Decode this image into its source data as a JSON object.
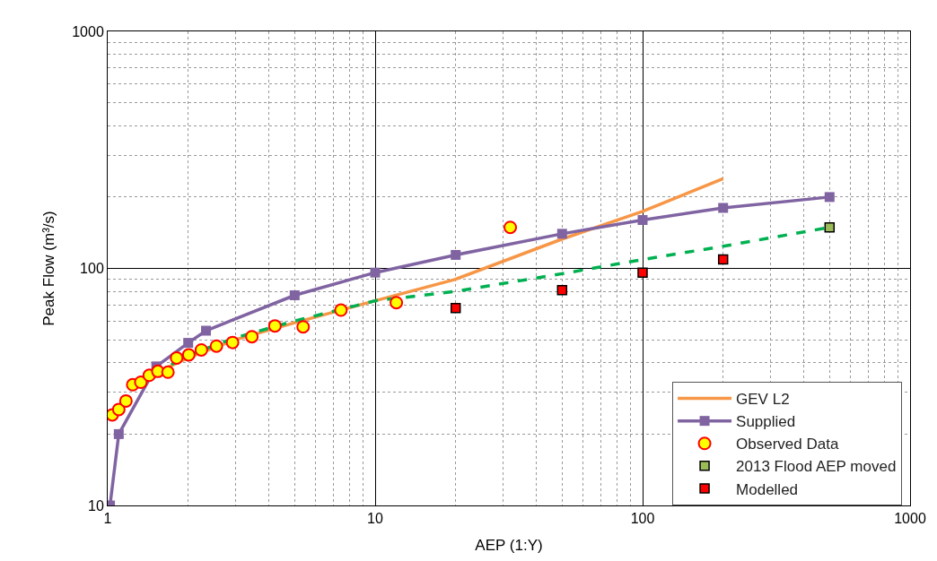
{
  "chart_data": {
    "type": "line",
    "xlabel": "AEP (1:Y)",
    "ylabel": "Peak Flow (m³/s)",
    "log": "xy",
    "xlim": [
      1,
      1000
    ],
    "ylim": [
      10,
      1000
    ],
    "xticks": [
      1,
      10,
      100,
      1000
    ],
    "yticks": [
      10,
      100,
      1000
    ],
    "grid": true,
    "legend": "bottom right",
    "series": [
      {
        "name": "GEV L2",
        "color": "#f79646",
        "marker": "none",
        "line_style": "solid",
        "x": [
          1.5,
          2,
          3,
          5,
          10,
          20,
          50,
          100,
          200
        ],
        "values": [
          36,
          42,
          50,
          59,
          73,
          90,
          133,
          174,
          239
        ]
      },
      {
        "name": "Observed Data",
        "type": "scatter",
        "color": "#ffff00",
        "marker": "circle",
        "x": [
          1.04,
          1.1,
          1.17,
          1.24,
          1.33,
          1.43,
          1.54,
          1.68,
          1.81,
          2.01,
          2.24,
          2.55,
          2.93,
          3.46,
          4.22,
          5.38,
          7.45,
          12,
          32
        ],
        "values": [
          24.1,
          25.4,
          27.6,
          32.3,
          33.1,
          35.4,
          36.8,
          36.5,
          41.9,
          43.2,
          45.3,
          47,
          48.7,
          51.5,
          57.2,
          56.7,
          66.7,
          71.7,
          149
        ]
      },
      {
        "name": "Supplied",
        "color": "#8064a2",
        "marker": "square",
        "line_style": "solid",
        "x": [
          1.02,
          1.1,
          1.52,
          2,
          2.33,
          5,
          10,
          20,
          50,
          100,
          200,
          500
        ],
        "values": [
          10,
          20,
          38.6,
          48.5,
          54.6,
          77,
          96,
          114,
          140,
          160,
          180,
          200
        ]
      },
      {
        "color": "#00b050",
        "marker": "none",
        "line_style": "dashed",
        "x": [
          1.5,
          2,
          3,
          5,
          10,
          20,
          50,
          100,
          200,
          500
        ],
        "values": [
          36,
          43,
          51,
          60,
          73,
          80,
          95,
          109,
          124,
          149
        ]
      },
      {
        "name": "2013 Flood AEP moved",
        "type": "scatter",
        "color": "#9bbb59",
        "marker": "square",
        "x": [
          500
        ],
        "values": [
          149
        ]
      },
      {
        "name": "Modelled",
        "type": "scatter",
        "color": "#ff0000",
        "marker": "square",
        "x": [
          20,
          50,
          100,
          200
        ],
        "values": [
          68,
          81,
          96,
          109
        ]
      }
    ]
  }
}
